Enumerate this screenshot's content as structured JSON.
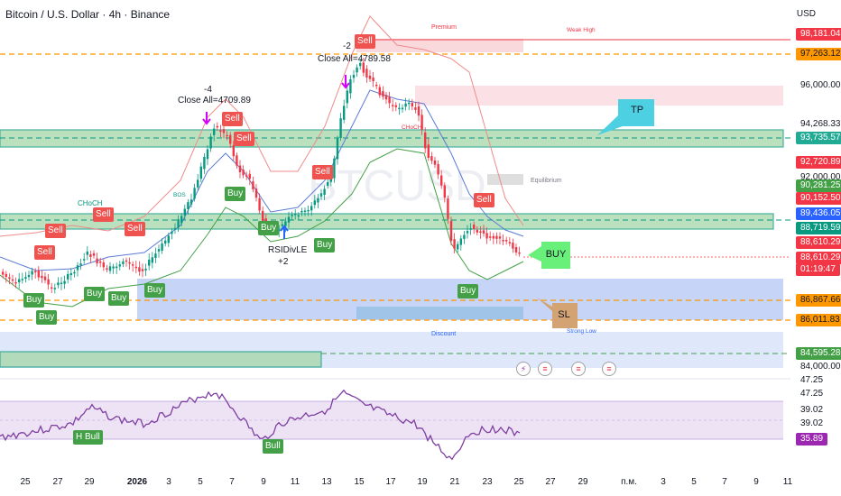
{
  "header": {
    "title": "Bitcoin / U.S. Dollar · 4h · Binance",
    "currency": "USD"
  },
  "price_scale": [
    {
      "text": "98,181.04",
      "bg": "#f23645",
      "fg": "#ffffff"
    },
    {
      "text": "97,263.12",
      "bg": "#ff9800",
      "fg": "#131722"
    },
    {
      "text": "96,000.00",
      "bg": "",
      "fg": "#131722"
    },
    {
      "text": "94,268.33",
      "bg": "",
      "fg": "#131722"
    },
    {
      "text": "93,735.57",
      "bg": "#22ab94",
      "fg": "#ffffff"
    },
    {
      "text": "92,720.89",
      "bg": "#f23645",
      "fg": "#ffffff"
    },
    {
      "text": "92,000.00",
      "bg": "",
      "fg": "#131722"
    },
    {
      "text": "90,281.25",
      "bg": "#43a047",
      "fg": "#ffffff"
    },
    {
      "text": "90,152.50",
      "bg": "#f23645",
      "fg": "#ffffff"
    },
    {
      "text": "89,436.05",
      "bg": "#2962ff",
      "fg": "#ffffff"
    },
    {
      "text": "88,719.59",
      "bg": "#089981",
      "fg": "#ffffff"
    },
    {
      "text": "88,610.29",
      "bg": "#f23645",
      "fg": "#ffffff"
    },
    {
      "text": "88,610.29",
      "bg": "#f23645",
      "fg": "#ffffff"
    },
    {
      "text": "01:19:47",
      "bg": "#f23645",
      "fg": "#ffffff"
    },
    {
      "text": "86,867.66",
      "bg": "#ff9800",
      "fg": "#131722"
    },
    {
      "text": "86,011.83",
      "bg": "#ff9800",
      "fg": "#131722"
    },
    {
      "text": "84,595.28",
      "bg": "#43a047",
      "fg": "#ffffff"
    },
    {
      "text": "84,000.00",
      "bg": "",
      "fg": "#131722"
    }
  ],
  "rsi_scale": [
    {
      "text": "47.25",
      "bg": "",
      "fg": "#131722"
    },
    {
      "text": "47.25",
      "bg": "",
      "fg": "#131722"
    },
    {
      "text": "39.02",
      "bg": "",
      "fg": "#131722"
    },
    {
      "text": "39.02",
      "bg": "",
      "fg": "#131722"
    },
    {
      "text": "35.89",
      "bg": "#9c27b0",
      "fg": "#ffffff"
    }
  ],
  "time_axis": [
    "25",
    "27",
    "29",
    "2026",
    "3",
    "5",
    "7",
    "9",
    "11",
    "13",
    "15",
    "17",
    "19",
    "21",
    "23",
    "25",
    "27",
    "29",
    "п.м.",
    "3",
    "5",
    "7",
    "9",
    "11"
  ],
  "annotations": {
    "close_all_1_count": "-4",
    "close_all_1": "Close All=4709.89",
    "close_all_2_count": "-2",
    "close_all_2": "Close All=4789.58",
    "rsi_divle": "RSIDivLE",
    "rsi_divle_count": "+2",
    "premium": "Premium",
    "weak_high": "Weak High",
    "equilibrium": "Equilibrium",
    "discount": "Discount",
    "strong_low": "Strong Low",
    "tp": "TP",
    "sl": "SL",
    "buy_bubble": "BUY",
    "choch": "CHoCH",
    "bos": "BOS",
    "h_bull": "H Bull",
    "bull": "Bull",
    "watermark": "BTCUSD",
    "sell": "Sell",
    "buy": "Buy"
  },
  "colors": {
    "green_zone": "#a5d6a7",
    "green_border": "#089981",
    "blue_zone": "#9fb8f2",
    "premium_zone": "#f8c9cf",
    "rsi_band": "#ede3f5",
    "rsi_line": "#7e3fa1",
    "orange_line": "#ff9800",
    "candle_up": "#089981",
    "candle_down": "#f23645"
  }
}
